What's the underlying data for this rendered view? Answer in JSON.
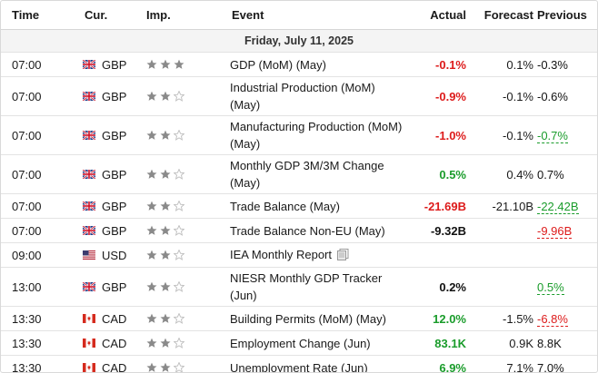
{
  "header": {
    "time": "Time",
    "currency": "Cur.",
    "importance": "Imp.",
    "event": "Event",
    "actual": "Actual",
    "forecast": "Forecast",
    "previous": "Previous"
  },
  "date_label": "Friday, July 11, 2025",
  "colors": {
    "negative": "#dd1b1b",
    "positive": "#1a9c2b",
    "star_filled": "#8a8a8a",
    "star_empty": "#bdbdbd"
  },
  "rows": [
    {
      "time": "07:00",
      "flag": "uk-flag-icon",
      "currency": "GBP",
      "importance": 3,
      "event": "GDP (MoM) (May)",
      "actual": "-0.1%",
      "actual_color": "red",
      "forecast": "0.1%",
      "previous": "-0.3%",
      "previous_style": "plain",
      "event_lines": 1
    },
    {
      "time": "07:00",
      "flag": "uk-flag-icon",
      "currency": "GBP",
      "importance": 2,
      "event": "Industrial Production (MoM) (May)",
      "actual": "-0.9%",
      "actual_color": "red",
      "forecast": "-0.1%",
      "previous": "-0.6%",
      "previous_style": "plain",
      "event_lines": 2
    },
    {
      "time": "07:00",
      "flag": "uk-flag-icon",
      "currency": "GBP",
      "importance": 2,
      "event": "Manufacturing Production (MoM) (May)",
      "actual": "-1.0%",
      "actual_color": "red",
      "forecast": "-0.1%",
      "previous": "-0.7%",
      "previous_style": "green",
      "event_lines": 2
    },
    {
      "time": "07:00",
      "flag": "uk-flag-icon",
      "currency": "GBP",
      "importance": 2,
      "event": "Monthly GDP 3M/3M Change (May)",
      "actual": "0.5%",
      "actual_color": "green",
      "forecast": "0.4%",
      "previous": "0.7%",
      "previous_style": "plain",
      "event_lines": 2
    },
    {
      "time": "07:00",
      "flag": "uk-flag-icon",
      "currency": "GBP",
      "importance": 2,
      "event": "Trade Balance (May)",
      "actual": "-21.69B",
      "actual_color": "red",
      "forecast": "-21.10B",
      "previous": "-22.42B",
      "previous_style": "green",
      "event_lines": 1
    },
    {
      "time": "07:00",
      "flag": "uk-flag-icon",
      "currency": "GBP",
      "importance": 2,
      "event": "Trade Balance Non-EU (May)",
      "actual": "-9.32B",
      "actual_color": "black",
      "forecast": "",
      "previous": "-9.96B",
      "previous_style": "red",
      "event_lines": 1
    },
    {
      "time": "09:00",
      "flag": "us-flag-icon",
      "currency": "USD",
      "importance": 2,
      "event": "IEA Monthly Report",
      "actual": "",
      "actual_color": "black",
      "forecast": "",
      "previous": "",
      "previous_style": "plain",
      "event_lines": 1,
      "doc_icon": true
    },
    {
      "time": "13:00",
      "flag": "uk-flag-icon",
      "currency": "GBP",
      "importance": 2,
      "event": "NIESR Monthly GDP Tracker (Jun)",
      "actual": "0.2%",
      "actual_color": "black",
      "forecast": "",
      "previous": "0.5%",
      "previous_style": "green",
      "event_lines": 2
    },
    {
      "time": "13:30",
      "flag": "ca-flag-icon",
      "currency": "CAD",
      "importance": 2,
      "event": "Building Permits (MoM) (May)",
      "actual": "12.0%",
      "actual_color": "green",
      "forecast": "-1.5%",
      "previous": "-6.8%",
      "previous_style": "red",
      "event_lines": 1
    },
    {
      "time": "13:30",
      "flag": "ca-flag-icon",
      "currency": "CAD",
      "importance": 2,
      "event": "Employment Change (Jun)",
      "actual": "83.1K",
      "actual_color": "green",
      "forecast": "0.9K",
      "previous": "8.8K",
      "previous_style": "plain",
      "event_lines": 1
    },
    {
      "time": "13:30",
      "flag": "ca-flag-icon",
      "currency": "CAD",
      "importance": 2,
      "event": "Unemployment Rate (Jun)",
      "actual": "6.9%",
      "actual_color": "green",
      "forecast": "7.1%",
      "previous": "7.0%",
      "previous_style": "plain",
      "event_lines": 1
    }
  ]
}
